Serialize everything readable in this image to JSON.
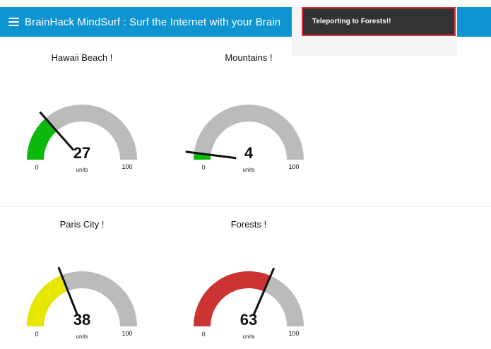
{
  "header": {
    "title": "BrainHack MindSurf : Surf the Internet with your Brain"
  },
  "notification": {
    "text": "Teleporting to Forests!!"
  },
  "gauges": [
    {
      "title": "Hawaii Beach !",
      "value": 27,
      "display": "27",
      "units": "units",
      "min": 0,
      "max": 100,
      "min_label": "0",
      "max_label": "100",
      "color": "#0cb80c"
    },
    {
      "title": "Mountains !",
      "value": 4,
      "display": "4",
      "units": "units",
      "min": 0,
      "max": 100,
      "min_label": "0",
      "max_label": "100",
      "color": "#0cb80c"
    },
    {
      "title": "Paris City !",
      "value": 38,
      "display": "38",
      "units": "units",
      "min": 0,
      "max": 100,
      "min_label": "0",
      "max_label": "100",
      "color": "#e6e600"
    },
    {
      "title": "Forests !",
      "value": 63,
      "display": "63",
      "units": "units",
      "min": 0,
      "max": 100,
      "min_label": "0",
      "max_label": "100",
      "color": "#cc3333"
    }
  ],
  "colors": {
    "header": "#0f94d2",
    "track": "#bbbbbb",
    "needle": "#111111",
    "toast_bg": "#333333",
    "toast_border": "#d9343e"
  }
}
